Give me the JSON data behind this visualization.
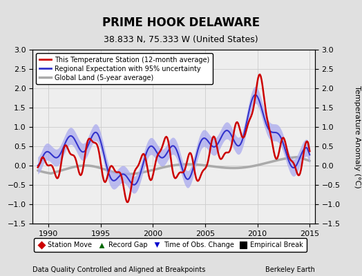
{
  "title": "PRIME HOOK DELAWARE",
  "subtitle": "38.833 N, 75.333 W (United States)",
  "xlabel_left": "Data Quality Controlled and Aligned at Breakpoints",
  "xlabel_right": "Berkeley Earth",
  "ylabel": "Temperature Anomaly (°C)",
  "xlim": [
    1988.5,
    2015.5
  ],
  "ylim": [
    -1.5,
    3.0
  ],
  "yticks": [
    -1.5,
    -1.0,
    -0.5,
    0.0,
    0.5,
    1.0,
    1.5,
    2.0,
    2.5,
    3.0
  ],
  "xticks": [
    1990,
    1995,
    2000,
    2005,
    2010,
    2015
  ],
  "bg_color": "#e0e0e0",
  "plot_bg_color": "#eeeeee",
  "station_color": "#cc0000",
  "regional_color": "#3333cc",
  "regional_fill_color": "#aaaaee",
  "global_color": "#aaaaaa",
  "legend_items": [
    {
      "label": "This Temperature Station (12-month average)",
      "color": "#cc0000",
      "lw": 2
    },
    {
      "label": "Regional Expectation with 95% uncertainty",
      "color": "#3333cc",
      "lw": 2
    },
    {
      "label": "Global Land (5-year average)",
      "color": "#aaaaaa",
      "lw": 2
    }
  ],
  "marker_items": [
    {
      "label": "Station Move",
      "color": "#cc0000",
      "marker": "D"
    },
    {
      "label": "Record Gap",
      "color": "#006600",
      "marker": "^"
    },
    {
      "label": "Time of Obs. Change",
      "color": "#0000cc",
      "marker": "v"
    },
    {
      "label": "Empirical Break",
      "color": "#000000",
      "marker": "s"
    }
  ]
}
